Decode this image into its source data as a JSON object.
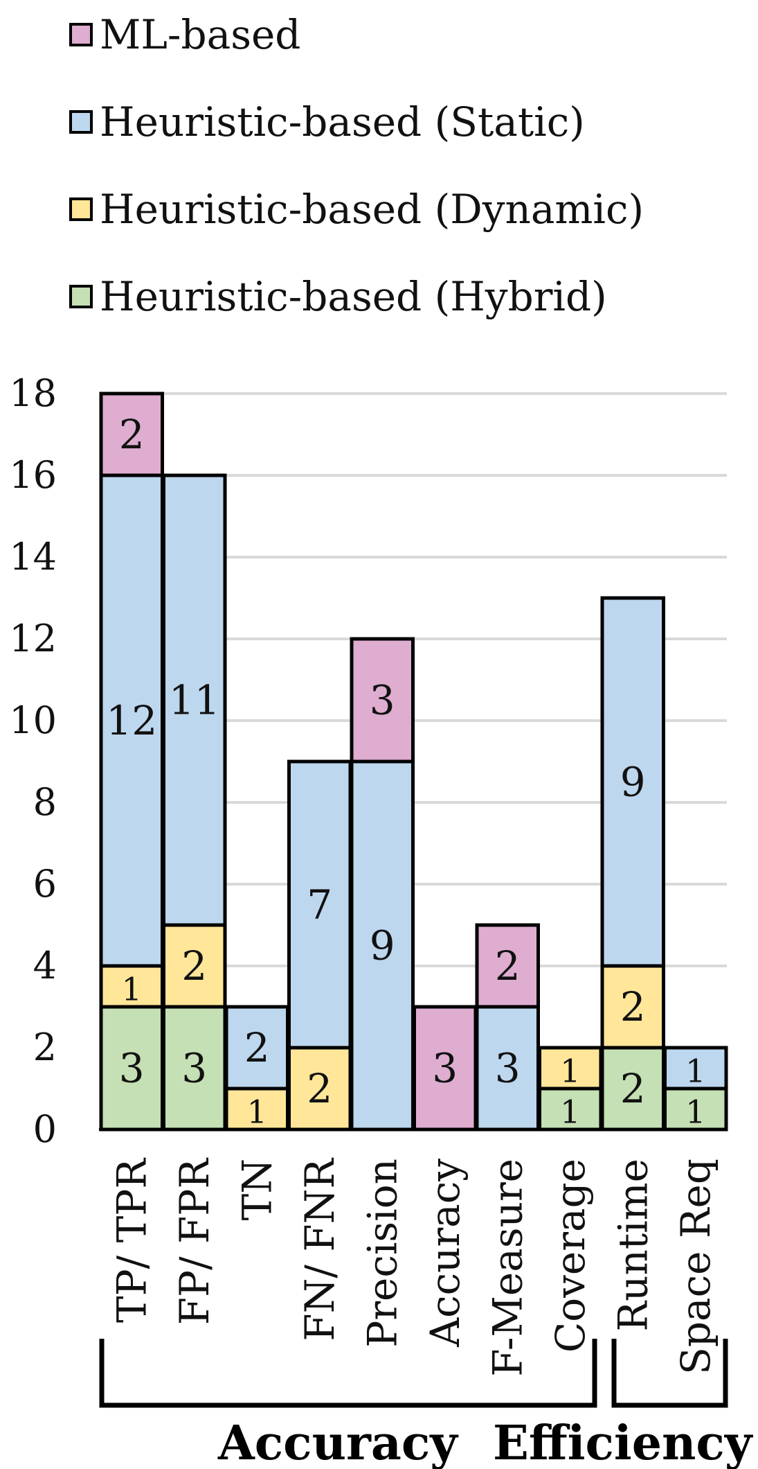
{
  "legend": [
    {
      "name": "ML-based",
      "color": "#deadd0"
    },
    {
      "name": "Heuristic-based (Static)",
      "color": "#bdd7ee"
    },
    {
      "name": "Heuristic-based (Dynamic)",
      "color": "#ffe699"
    },
    {
      "name": "Heuristic-based (Hybrid)",
      "color": "#c5e0b4"
    }
  ],
  "chart_data": {
    "type": "bar",
    "stacked": true,
    "categories": [
      "TP/ TPR",
      "FP/ FPR",
      "TN",
      "FN/ FNR",
      "Precision",
      "Accuracy",
      "F-Measure",
      "Coverage",
      "Runtime",
      "Space Req"
    ],
    "series": [
      {
        "name": "Heuristic-based (Hybrid)",
        "color": "#c5e0b4",
        "values": [
          3,
          3,
          0,
          0,
          0,
          0,
          0,
          1,
          2,
          1
        ]
      },
      {
        "name": "Heuristic-based (Dynamic)",
        "color": "#ffe699",
        "values": [
          1,
          2,
          1,
          2,
          0,
          0,
          0,
          1,
          2,
          0
        ]
      },
      {
        "name": "Heuristic-based (Static)",
        "color": "#bdd7ee",
        "values": [
          12,
          11,
          2,
          7,
          9,
          0,
          3,
          0,
          9,
          1
        ]
      },
      {
        "name": "ML-based",
        "color": "#deadd0",
        "values": [
          2,
          0,
          0,
          0,
          3,
          3,
          2,
          0,
          0,
          0
        ]
      }
    ],
    "ylim": [
      0,
      18
    ],
    "yticks": [
      0,
      2,
      4,
      6,
      8,
      10,
      12,
      14,
      16,
      18
    ],
    "grid": true,
    "legend_position": "top",
    "groups": [
      {
        "label": "Accuracy",
        "from": "TP/ TPR",
        "to": "Coverage"
      },
      {
        "label": "Efficiency",
        "from": "Runtime",
        "to": "Space Req"
      }
    ]
  }
}
